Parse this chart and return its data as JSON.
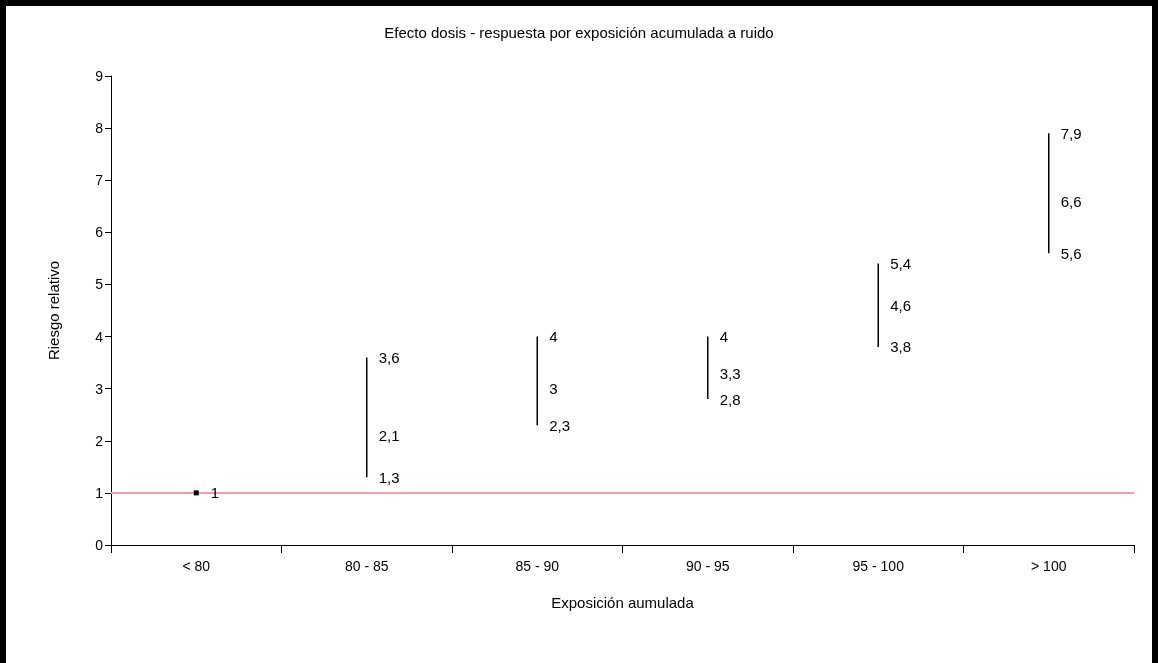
{
  "chart_data": {
    "type": "line",
    "title": "Efecto dosis - respuesta por exposición acumulada a ruido",
    "xlabel": "Exposición aumulada",
    "ylabel": "Riesgo relativo",
    "categories": [
      "< 80",
      "80 - 85",
      "85 - 90",
      "90 - 95",
      "95 - 100",
      "> 100"
    ],
    "series": [
      {
        "color": "#000000",
        "marker": "square",
        "x": [
          "< 80"
        ],
        "values": [
          1
        ],
        "value_labels": [
          "1"
        ]
      },
      {
        "color": "#000000",
        "x": [
          "80 - 85",
          "80 - 85",
          "80 - 85"
        ],
        "values": [
          3.6,
          2.1,
          1.3
        ],
        "value_labels": [
          "3,6",
          "2,1",
          "1,3"
        ]
      },
      {
        "color": "#000000",
        "x": [
          "85 - 90",
          "85 - 90",
          "85 - 90"
        ],
        "values": [
          4,
          3,
          2.3
        ],
        "value_labels": [
          "4",
          "3",
          "2,3"
        ]
      },
      {
        "color": "#000000",
        "x": [
          "90 - 95",
          "90 - 95",
          "90 - 95"
        ],
        "values": [
          4,
          3.3,
          2.8
        ],
        "value_labels": [
          "4",
          "3,3",
          "2,8"
        ]
      },
      {
        "color": "#000000",
        "x": [
          "95 - 100",
          "95 - 100",
          "95 - 100"
        ],
        "values": [
          5.4,
          4.6,
          3.8
        ],
        "value_labels": [
          "5,4",
          "4,6",
          "3,8"
        ]
      },
      {
        "color": "#000000",
        "x": [
          "> 100",
          "> 100",
          "> 100"
        ],
        "values": [
          7.9,
          6.6,
          5.6
        ],
        "value_labels": [
          "7,9",
          "6,6",
          "5,6"
        ]
      }
    ],
    "ylim": [
      0,
      9
    ],
    "yticks": [
      0,
      1,
      2,
      3,
      4,
      5,
      6,
      7,
      8,
      9
    ],
    "marker": "none",
    "ref_lines": [
      {
        "axis": "y",
        "value": 1,
        "color": "#ff99aa"
      }
    ]
  }
}
